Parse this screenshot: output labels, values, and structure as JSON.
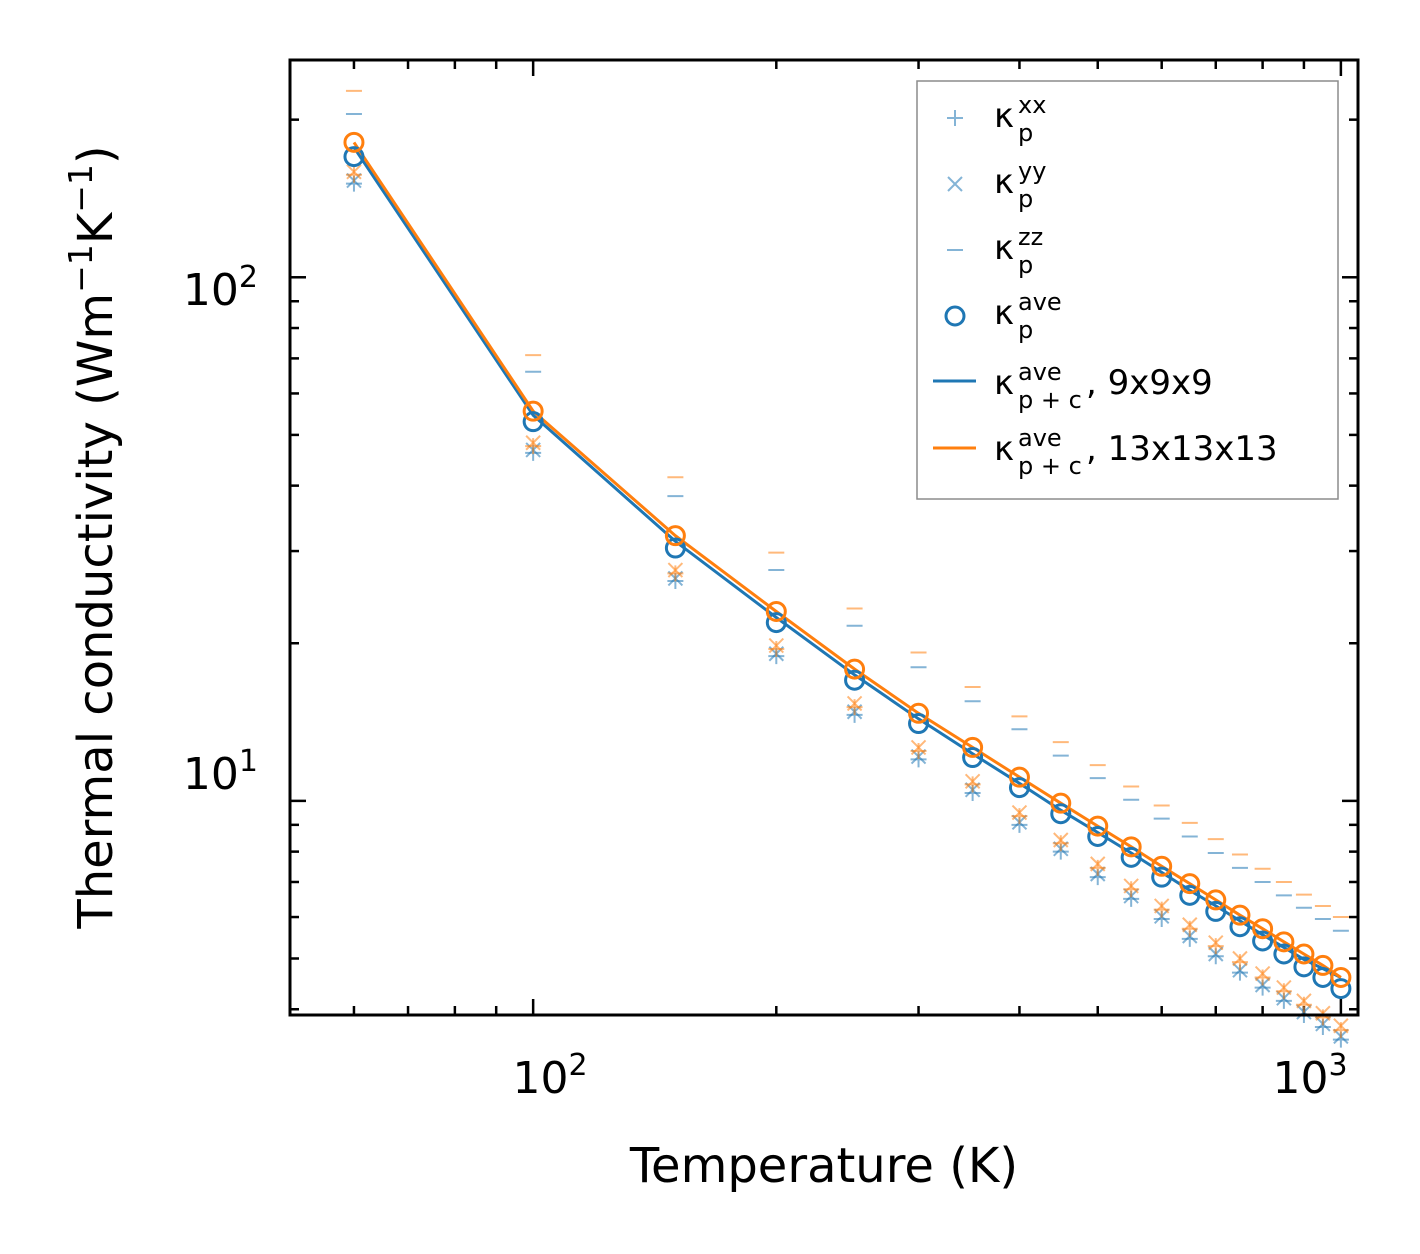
{
  "chart_data": {
    "type": "scatter",
    "xscale": "log",
    "yscale": "log",
    "xlabel": "Temperature (K)",
    "ylabel_parts": {
      "main": "Thermal conductivity (Wm",
      "exp1": "−1",
      "mid": "K",
      "exp2": "−1",
      "end": ")"
    },
    "xlim": [
      50,
      1050
    ],
    "ylim": [
      3.9,
      260
    ],
    "x_ticks": [
      {
        "base": "10",
        "exp": "2"
      },
      {
        "base": "10",
        "exp": "3"
      }
    ],
    "y_ticks": [
      {
        "base": "10",
        "exp": "1"
      },
      {
        "base": "10",
        "exp": "2"
      }
    ],
    "x": [
      60,
      100,
      150,
      200,
      250,
      300,
      350,
      400,
      450,
      500,
      550,
      600,
      650,
      700,
      750,
      800,
      850,
      900,
      950,
      1000
    ],
    "series": [
      {
        "name": "kxx_9",
        "grid": "9x9x9",
        "component": "xx",
        "marker": "plus",
        "color": "#1f77b4",
        "values": [
          151,
          46.2,
          26.3,
          18.9,
          14.6,
          12.0,
          10.35,
          9.0,
          8.0,
          7.15,
          6.5,
          5.95,
          5.45,
          5.05,
          4.7,
          4.4,
          4.15,
          3.9,
          3.7,
          3.5
        ]
      },
      {
        "name": "kyy_9",
        "grid": "9x9x9",
        "component": "yy",
        "marker": "x",
        "color": "#1f77b4",
        "values": [
          153,
          46.8,
          26.6,
          19.1,
          14.8,
          12.15,
          10.5,
          9.1,
          8.1,
          7.25,
          6.58,
          6.02,
          5.52,
          5.1,
          4.75,
          4.45,
          4.2,
          3.95,
          3.75,
          3.55
        ]
      },
      {
        "name": "kzz_9",
        "grid": "9x9x9",
        "component": "zz",
        "marker": "dash",
        "color": "#1f77b4",
        "values": [
          205,
          66,
          38.2,
          27.6,
          21.6,
          18.0,
          15.5,
          13.7,
          12.2,
          11.05,
          10.05,
          9.25,
          8.55,
          7.95,
          7.45,
          7.0,
          6.6,
          6.25,
          5.95,
          5.65
        ]
      },
      {
        "name": "kave_9",
        "grid": "9x9x9",
        "component": "ave",
        "marker": "circle",
        "color": "#1f77b4",
        "values": [
          170,
          53,
          30.4,
          21.9,
          17.0,
          14.05,
          12.1,
          10.6,
          9.45,
          8.55,
          7.8,
          7.15,
          6.6,
          6.15,
          5.75,
          5.4,
          5.1,
          4.82,
          4.6,
          4.38
        ]
      },
      {
        "name": "kpc_9",
        "grid": "9x9x9",
        "component": "ave_line",
        "marker": "line",
        "color": "#1f77b4",
        "values": [
          177,
          54.5,
          31.3,
          22.4,
          17.4,
          14.35,
          12.3,
          10.8,
          9.6,
          8.7,
          7.95,
          7.3,
          6.75,
          6.3,
          5.9,
          5.55,
          5.25,
          4.98,
          4.78,
          4.6
        ]
      },
      {
        "name": "kxx_13",
        "grid": "13x13x13",
        "component": "xx",
        "marker": "plus",
        "color": "#ff7f0e",
        "values": [
          157,
          47.6,
          27.2,
          19.5,
          15.1,
          12.45,
          10.75,
          9.35,
          8.3,
          7.45,
          6.78,
          6.2,
          5.7,
          5.28,
          4.92,
          4.6,
          4.33,
          4.08,
          3.86,
          3.65
        ]
      },
      {
        "name": "kyy_13",
        "grid": "13x13x13",
        "component": "yy",
        "marker": "x",
        "color": "#ff7f0e",
        "values": [
          159,
          48.3,
          27.6,
          19.8,
          15.35,
          12.65,
          10.9,
          9.5,
          8.42,
          7.58,
          6.88,
          6.3,
          5.8,
          5.36,
          5.0,
          4.68,
          4.4,
          4.15,
          3.93,
          3.72
        ]
      },
      {
        "name": "kzz_13",
        "grid": "13x13x13",
        "component": "zz",
        "marker": "dash",
        "color": "#ff7f0e",
        "values": [
          227,
          71,
          41.5,
          29.8,
          23.3,
          19.2,
          16.5,
          14.5,
          12.95,
          11.7,
          10.65,
          9.8,
          9.08,
          8.45,
          7.9,
          7.42,
          7.0,
          6.62,
          6.3,
          6.0
        ]
      },
      {
        "name": "kave_13",
        "grid": "13x13x13",
        "component": "ave",
        "marker": "circle",
        "color": "#ff7f0e",
        "values": [
          181,
          55.5,
          32.1,
          23.0,
          17.85,
          14.7,
          12.65,
          11.1,
          9.9,
          8.95,
          8.17,
          7.5,
          6.95,
          6.47,
          6.05,
          5.7,
          5.38,
          5.1,
          4.85,
          4.6
        ]
      },
      {
        "name": "kpc_13",
        "grid": "13x13x13",
        "component": "ave_line",
        "marker": "line",
        "color": "#ff7f0e",
        "values": [
          181,
          55.5,
          32.1,
          23.0,
          17.85,
          14.7,
          12.65,
          11.1,
          9.9,
          8.95,
          8.17,
          7.5,
          6.95,
          6.47,
          6.05,
          5.7,
          5.38,
          5.1,
          4.85,
          4.6
        ]
      }
    ],
    "legend": {
      "placement": "top-right",
      "entries": [
        {
          "marker": "plus",
          "color": "#1f77b4",
          "base": "κ",
          "sup": "xx",
          "sub": "p",
          "suffix": ""
        },
        {
          "marker": "x",
          "color": "#1f77b4",
          "base": "κ",
          "sup": "yy",
          "sub": "p",
          "suffix": ""
        },
        {
          "marker": "dash",
          "color": "#1f77b4",
          "base": "κ",
          "sup": "zz",
          "sub": "p",
          "suffix": ""
        },
        {
          "marker": "circle",
          "color": "#1f77b4",
          "base": "κ",
          "sup": "ave",
          "sub": "p",
          "suffix": ""
        },
        {
          "marker": "line",
          "color": "#1f77b4",
          "base": "κ",
          "sup": "ave",
          "sub": "p + c",
          "suffix": ", 9x9x9"
        },
        {
          "marker": "line",
          "color": "#ff7f0e",
          "base": "κ",
          "sup": "ave",
          "sub": "p + c",
          "suffix": ", 13x13x13"
        }
      ]
    }
  }
}
